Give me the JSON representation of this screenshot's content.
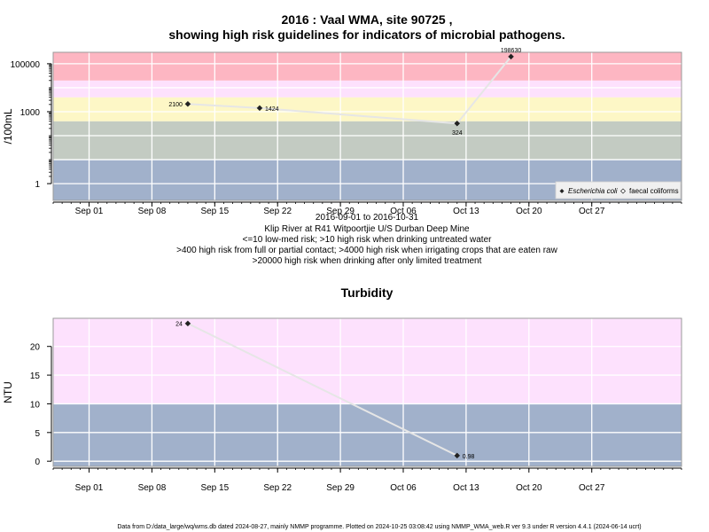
{
  "chart_data": [
    {
      "type": "line",
      "title": "2016 : Vaal WMA, site 90725 ,",
      "subtitle": "showing high risk guidelines for indicators of microbial pathogens.",
      "ylabel": "/100mL",
      "yscale": "log",
      "xlim": [
        "2016-08-28",
        "2016-11-06"
      ],
      "ylim": [
        0.2,
        300000
      ],
      "x_ticks": [
        "Sep 01",
        "Sep 08",
        "Sep 15",
        "Sep 22",
        "Sep 29",
        "Oct 06",
        "Oct 13",
        "Oct 20",
        "Oct 27"
      ],
      "x_tick_dates": [
        "2016-09-01",
        "2016-09-08",
        "2016-09-15",
        "2016-09-22",
        "2016-09-29",
        "2016-10-06",
        "2016-10-13",
        "2016-10-20",
        "2016-10-27"
      ],
      "y_ticks": [
        "1",
        "1000",
        "100000"
      ],
      "y_tick_values": [
        1,
        1000,
        100000
      ],
      "grid": true,
      "bands": [
        {
          "from": 0.2,
          "to": 10,
          "color": "#a1b1cb"
        },
        {
          "from": 10,
          "to": 400,
          "color": "#c3cbc2"
        },
        {
          "from": 400,
          "to": 4000,
          "color": "#fdf7c6"
        },
        {
          "from": 4000,
          "to": 20000,
          "color": "#fde1fd"
        },
        {
          "from": 20000,
          "to": 300000,
          "color": "#fdb6c2"
        }
      ],
      "series": [
        {
          "name": "Escherichia coli",
          "marker": "filled-diamond",
          "points": [
            {
              "x": "2016-09-12",
              "y": 2100,
              "label": "2100",
              "pos": "left"
            },
            {
              "x": "2016-09-20",
              "y": 1424,
              "label": "1424",
              "pos": "right"
            },
            {
              "x": "2016-10-12",
              "y": 324,
              "label": "324",
              "pos": "below"
            },
            {
              "x": "2016-10-18",
              "y": 198630,
              "label": "198630",
              "pos": "above"
            }
          ]
        }
      ],
      "legend": {
        "position": "bottom-right",
        "entries": [
          {
            "label": "Escherichia coli",
            "marker": "filled-diamond",
            "italic": true
          },
          {
            "label": "faecal coliforms",
            "marker": "open-diamond",
            "italic": false
          }
        ]
      },
      "captions": [
        "2016-09-01 to 2016-10-31",
        "Klip River at R41 Witpoortjie U/S Durban Deep Mine",
        "<=10 low-med risk; >10 high risk when drinking untreated water",
        ">400 high risk from full or partial contact; >4000 high risk when irrigating crops that are eaten raw",
        ">20000 high risk when drinking after only limited treatment"
      ]
    },
    {
      "type": "line",
      "title": "Turbidity",
      "ylabel": "NTU",
      "yscale": "linear",
      "xlim": [
        "2016-08-28",
        "2016-11-06"
      ],
      "ylim": [
        -0.9,
        24.9
      ],
      "x_ticks": [
        "Sep 01",
        "Sep 08",
        "Sep 15",
        "Sep 22",
        "Sep 29",
        "Oct 06",
        "Oct 13",
        "Oct 20",
        "Oct 27"
      ],
      "x_tick_dates": [
        "2016-09-01",
        "2016-09-08",
        "2016-09-15",
        "2016-09-22",
        "2016-09-29",
        "2016-10-06",
        "2016-10-13",
        "2016-10-20",
        "2016-10-27"
      ],
      "y_ticks": [
        "0",
        "5",
        "10",
        "15",
        "20"
      ],
      "y_tick_values": [
        0,
        5,
        10,
        15,
        20
      ],
      "grid": true,
      "bands": [
        {
          "from": -0.9,
          "to": 10,
          "color": "#a1b1cb"
        },
        {
          "from": 10,
          "to": 24.9,
          "color": "#fde1fd"
        }
      ],
      "series": [
        {
          "name": "Turbidity",
          "marker": "filled-diamond",
          "points": [
            {
              "x": "2016-09-12",
              "y": 24,
              "label": "24",
              "pos": "left"
            },
            {
              "x": "2016-10-12",
              "y": 0.98,
              "label": "0.98",
              "pos": "right"
            }
          ]
        }
      ]
    }
  ],
  "footer": "Data from D:/data_large/wq/wms.db dated 2024-08-27, mainly NMMP programme. Plotted on 2024-10-25 03:08:42 using NMMP_WMA_web.R ver 9.3 under R version 4.4.1 (2024-06-14 ucrt)"
}
